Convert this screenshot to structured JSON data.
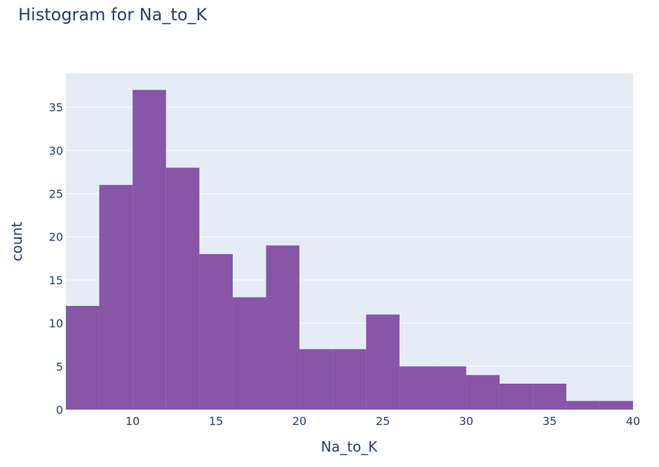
{
  "chart_data": {
    "type": "bar",
    "title": "Histogram for Na_to_K",
    "xlabel": "Na_to_K",
    "ylabel": "count",
    "xlim": [
      6,
      40
    ],
    "ylim": [
      0,
      38.9
    ],
    "bin_width": 2,
    "bins": [
      {
        "start": 6,
        "end": 8,
        "count": 12
      },
      {
        "start": 8,
        "end": 10,
        "count": 26
      },
      {
        "start": 10,
        "end": 12,
        "count": 37
      },
      {
        "start": 12,
        "end": 14,
        "count": 28
      },
      {
        "start": 14,
        "end": 16,
        "count": 18
      },
      {
        "start": 16,
        "end": 18,
        "count": 13
      },
      {
        "start": 18,
        "end": 20,
        "count": 19
      },
      {
        "start": 20,
        "end": 22,
        "count": 7
      },
      {
        "start": 22,
        "end": 24,
        "count": 7
      },
      {
        "start": 24,
        "end": 26,
        "count": 11
      },
      {
        "start": 26,
        "end": 28,
        "count": 5
      },
      {
        "start": 28,
        "end": 30,
        "count": 5
      },
      {
        "start": 30,
        "end": 32,
        "count": 4
      },
      {
        "start": 32,
        "end": 34,
        "count": 3
      },
      {
        "start": 34,
        "end": 36,
        "count": 3
      },
      {
        "start": 36,
        "end": 38,
        "count": 1
      },
      {
        "start": 38,
        "end": 40,
        "count": 1
      }
    ],
    "x_ticks": [
      10,
      15,
      20,
      25,
      30,
      35,
      40
    ],
    "y_ticks": [
      0,
      5,
      10,
      15,
      20,
      25,
      30,
      35
    ],
    "grid": true,
    "colors": {
      "bar": "#8756a7",
      "plot_bg": "#e5ecf6",
      "grid": "#ffffff",
      "text": "#2a3f5f"
    }
  }
}
